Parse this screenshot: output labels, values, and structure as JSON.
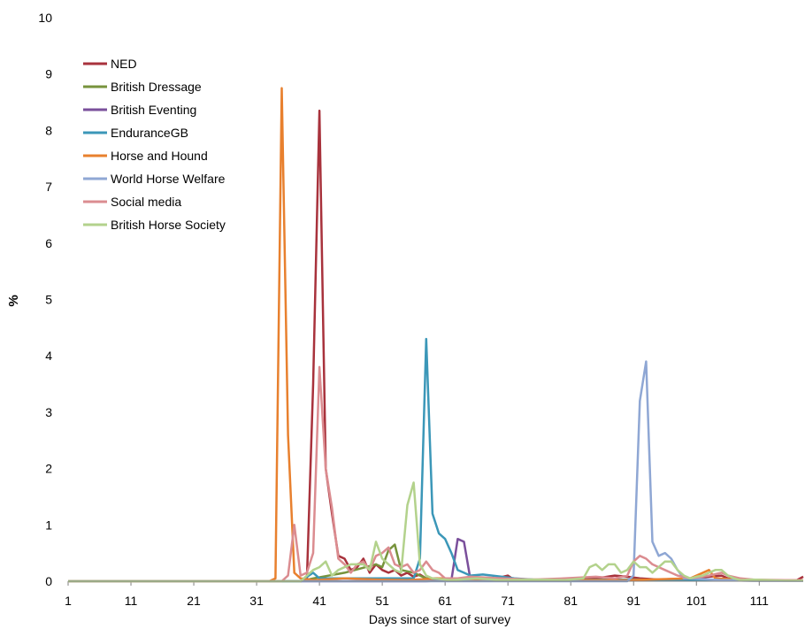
{
  "chart_data": {
    "type": "line",
    "xlabel": "Days since start of survey",
    "ylabel": "%",
    "xlim": [
      1,
      118
    ],
    "ylim": [
      0,
      10
    ],
    "x_ticks": [
      1,
      11,
      21,
      31,
      41,
      51,
      61,
      71,
      81,
      91,
      101,
      111
    ],
    "y_ticks": [
      0,
      1,
      2,
      3,
      4,
      5,
      6,
      7,
      8,
      9,
      10
    ],
    "grid": false,
    "legend_position": "top-left",
    "series": [
      {
        "name": "NED",
        "color": "#a8323c",
        "points": [
          [
            1,
            0
          ],
          [
            38,
            0
          ],
          [
            39,
            0.02
          ],
          [
            40,
            3.5
          ],
          [
            41,
            8.35
          ],
          [
            42,
            2.0
          ],
          [
            43,
            1.2
          ],
          [
            44,
            0.45
          ],
          [
            45,
            0.4
          ],
          [
            46,
            0.2
          ],
          [
            47,
            0.25
          ],
          [
            48,
            0.4
          ],
          [
            49,
            0.15
          ],
          [
            50,
            0.3
          ],
          [
            51,
            0.2
          ],
          [
            52,
            0.15
          ],
          [
            53,
            0.2
          ],
          [
            54,
            0.1
          ],
          [
            55,
            0.15
          ],
          [
            56,
            0.08
          ],
          [
            57,
            0.12
          ],
          [
            58,
            0.05
          ],
          [
            60,
            0.05
          ],
          [
            62,
            0.03
          ],
          [
            65,
            0.05
          ],
          [
            68,
            0.02
          ],
          [
            71,
            0.1
          ],
          [
            72,
            0.02
          ],
          [
            75,
            0.03
          ],
          [
            80,
            0.02
          ],
          [
            85,
            0.05
          ],
          [
            88,
            0.1
          ],
          [
            90,
            0.08
          ],
          [
            92,
            0.05
          ],
          [
            95,
            0.03
          ],
          [
            100,
            0.05
          ],
          [
            105,
            0.1
          ],
          [
            106,
            0.05
          ],
          [
            110,
            0.02
          ],
          [
            115,
            0.02
          ],
          [
            117,
            0.02
          ],
          [
            118,
            0.08
          ]
        ]
      },
      {
        "name": "British Dressage",
        "color": "#77933c",
        "points": [
          [
            1,
            0
          ],
          [
            38,
            0
          ],
          [
            40,
            0.05
          ],
          [
            45,
            0.15
          ],
          [
            50,
            0.3
          ],
          [
            51,
            0.25
          ],
          [
            52,
            0.55
          ],
          [
            53,
            0.65
          ],
          [
            54,
            0.2
          ],
          [
            56,
            0.15
          ],
          [
            58,
            0.05
          ],
          [
            62,
            0.02
          ],
          [
            70,
            0.02
          ],
          [
            80,
            0.02
          ],
          [
            90,
            0.03
          ],
          [
            100,
            0.02
          ],
          [
            110,
            0.02
          ],
          [
            118,
            0.02
          ]
        ]
      },
      {
        "name": "British Eventing",
        "color": "#7a4f9b",
        "points": [
          [
            1,
            0
          ],
          [
            58,
            0
          ],
          [
            62,
            0.02
          ],
          [
            63,
            0.75
          ],
          [
            64,
            0.7
          ],
          [
            65,
            0.05
          ],
          [
            66,
            0.02
          ],
          [
            70,
            0.02
          ],
          [
            80,
            0.01
          ],
          [
            90,
            0.02
          ],
          [
            100,
            0.02
          ],
          [
            110,
            0.01
          ],
          [
            118,
            0.01
          ]
        ]
      },
      {
        "name": "EnduranceGB",
        "color": "#3b97b8",
        "points": [
          [
            1,
            0
          ],
          [
            38,
            0
          ],
          [
            40,
            0.15
          ],
          [
            41,
            0.05
          ],
          [
            42,
            0.05
          ],
          [
            56,
            0.05
          ],
          [
            57,
            0.4
          ],
          [
            58,
            4.3
          ],
          [
            59,
            1.2
          ],
          [
            60,
            0.85
          ],
          [
            61,
            0.75
          ],
          [
            62,
            0.5
          ],
          [
            63,
            0.2
          ],
          [
            64,
            0.15
          ],
          [
            65,
            0.1
          ],
          [
            67,
            0.12
          ],
          [
            70,
            0.08
          ],
          [
            72,
            0.05
          ],
          [
            75,
            0.03
          ],
          [
            80,
            0.02
          ],
          [
            90,
            0.03
          ],
          [
            100,
            0.02
          ],
          [
            110,
            0.01
          ],
          [
            118,
            0.01
          ]
        ]
      },
      {
        "name": "Horse and Hound",
        "color": "#e8802e",
        "points": [
          [
            1,
            0
          ],
          [
            33,
            0
          ],
          [
            34,
            0.05
          ],
          [
            35,
            8.75
          ],
          [
            36,
            2.6
          ],
          [
            37,
            0.15
          ],
          [
            38,
            0.05
          ],
          [
            40,
            0.02
          ],
          [
            45,
            0.05
          ],
          [
            50,
            0.03
          ],
          [
            55,
            0.02
          ],
          [
            60,
            0.05
          ],
          [
            70,
            0.02
          ],
          [
            80,
            0.02
          ],
          [
            90,
            0.02
          ],
          [
            100,
            0.05
          ],
          [
            103,
            0.2
          ],
          [
            104,
            0.05
          ],
          [
            110,
            0.02
          ],
          [
            118,
            0.02
          ]
        ]
      },
      {
        "name": "World Horse Welfare",
        "color": "#8fa7d4",
        "points": [
          [
            1,
            0
          ],
          [
            90,
            0
          ],
          [
            91,
            0.1
          ],
          [
            92,
            3.2
          ],
          [
            93,
            3.9
          ],
          [
            94,
            0.7
          ],
          [
            95,
            0.45
          ],
          [
            96,
            0.5
          ],
          [
            97,
            0.4
          ],
          [
            98,
            0.2
          ],
          [
            99,
            0.05
          ],
          [
            100,
            0.05
          ],
          [
            105,
            0.02
          ],
          [
            110,
            0.02
          ],
          [
            118,
            0.02
          ]
        ]
      },
      {
        "name": "Social media",
        "color": "#db8c90",
        "points": [
          [
            1,
            0
          ],
          [
            35,
            0
          ],
          [
            36,
            0.1
          ],
          [
            37,
            1.0
          ],
          [
            38,
            0.1
          ],
          [
            39,
            0.15
          ],
          [
            40,
            0.5
          ],
          [
            41,
            3.8
          ],
          [
            42,
            2.0
          ],
          [
            43,
            1.3
          ],
          [
            44,
            0.4
          ],
          [
            45,
            0.3
          ],
          [
            46,
            0.15
          ],
          [
            47,
            0.3
          ],
          [
            48,
            0.35
          ],
          [
            49,
            0.2
          ],
          [
            50,
            0.45
          ],
          [
            51,
            0.5
          ],
          [
            52,
            0.6
          ],
          [
            53,
            0.3
          ],
          [
            54,
            0.25
          ],
          [
            55,
            0.3
          ],
          [
            56,
            0.15
          ],
          [
            57,
            0.2
          ],
          [
            58,
            0.35
          ],
          [
            59,
            0.2
          ],
          [
            60,
            0.15
          ],
          [
            61,
            0.05
          ],
          [
            63,
            0.05
          ],
          [
            65,
            0.08
          ],
          [
            70,
            0.05
          ],
          [
            75,
            0.03
          ],
          [
            80,
            0.05
          ],
          [
            85,
            0.08
          ],
          [
            88,
            0.05
          ],
          [
            90,
            0.1
          ],
          [
            91,
            0.35
          ],
          [
            92,
            0.45
          ],
          [
            93,
            0.4
          ],
          [
            94,
            0.3
          ],
          [
            95,
            0.25
          ],
          [
            96,
            0.2
          ],
          [
            98,
            0.1
          ],
          [
            100,
            0.05
          ],
          [
            103,
            0.1
          ],
          [
            105,
            0.15
          ],
          [
            106,
            0.1
          ],
          [
            108,
            0.05
          ],
          [
            110,
            0.03
          ],
          [
            115,
            0.02
          ],
          [
            118,
            0.02
          ]
        ]
      },
      {
        "name": "British Horse Society",
        "color": "#b3d28c",
        "points": [
          [
            1,
            0
          ],
          [
            38,
            0
          ],
          [
            40,
            0.2
          ],
          [
            41,
            0.25
          ],
          [
            42,
            0.35
          ],
          [
            43,
            0.1
          ],
          [
            44,
            0.2
          ],
          [
            46,
            0.3
          ],
          [
            48,
            0.3
          ],
          [
            49,
            0.2
          ],
          [
            50,
            0.7
          ],
          [
            51,
            0.4
          ],
          [
            52,
            0.3
          ],
          [
            53,
            0.2
          ],
          [
            54,
            0.15
          ],
          [
            55,
            1.35
          ],
          [
            56,
            1.75
          ],
          [
            57,
            0.3
          ],
          [
            58,
            0.1
          ],
          [
            59,
            0.05
          ],
          [
            62,
            0.02
          ],
          [
            66,
            0.05
          ],
          [
            70,
            0.02
          ],
          [
            75,
            0.03
          ],
          [
            80,
            0.02
          ],
          [
            83,
            0.05
          ],
          [
            84,
            0.25
          ],
          [
            85,
            0.3
          ],
          [
            86,
            0.2
          ],
          [
            87,
            0.3
          ],
          [
            88,
            0.3
          ],
          [
            89,
            0.15
          ],
          [
            90,
            0.2
          ],
          [
            91,
            0.35
          ],
          [
            92,
            0.25
          ],
          [
            93,
            0.25
          ],
          [
            94,
            0.15
          ],
          [
            96,
            0.35
          ],
          [
            97,
            0.35
          ],
          [
            98,
            0.2
          ],
          [
            99,
            0.1
          ],
          [
            100,
            0.05
          ],
          [
            101,
            0.08
          ],
          [
            102,
            0.1
          ],
          [
            103,
            0.15
          ],
          [
            104,
            0.2
          ],
          [
            105,
            0.2
          ],
          [
            106,
            0.1
          ],
          [
            107,
            0.05
          ],
          [
            108,
            0.02
          ],
          [
            110,
            0.03
          ],
          [
            115,
            0.01
          ],
          [
            118,
            0.01
          ]
        ]
      }
    ]
  }
}
